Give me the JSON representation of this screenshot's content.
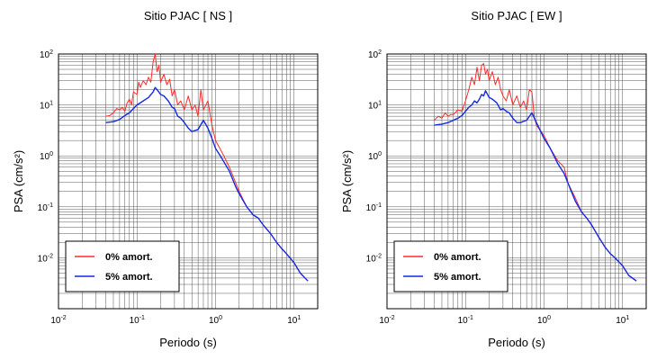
{
  "chart_data": [
    {
      "type": "line",
      "title": "Sitio PJAC [ NS ]",
      "xlabel": "Periodo (s)",
      "ylabel": "PSA (cm/s²)",
      "x_scale": "log",
      "y_scale": "log",
      "xlim": [
        0.01,
        20
      ],
      "ylim": [
        0.001,
        100
      ],
      "x_ticks": [
        {
          "base": "10",
          "exp": "-2"
        },
        {
          "base": "10",
          "exp": "-1"
        },
        {
          "base": "10",
          "exp": "0"
        },
        {
          "base": "10",
          "exp": "1"
        }
      ],
      "y_ticks": [
        {
          "base": "10",
          "exp": "-2"
        },
        {
          "base": "10",
          "exp": "-1"
        },
        {
          "base": "10",
          "exp": "0"
        },
        {
          "base": "10",
          "exp": "1"
        },
        {
          "base": "10",
          "exp": "2"
        }
      ],
      "grid": true,
      "legend_position": "bottom-left",
      "series": [
        {
          "name": "0% amort.",
          "color": "#ff2a2a",
          "points": [
            [
              0.04,
              6
            ],
            [
              0.045,
              6.2
            ],
            [
              0.05,
              7
            ],
            [
              0.055,
              8.5
            ],
            [
              0.06,
              8
            ],
            [
              0.065,
              9
            ],
            [
              0.07,
              7.5
            ],
            [
              0.075,
              11
            ],
            [
              0.08,
              13
            ],
            [
              0.085,
              10
            ],
            [
              0.09,
              18
            ],
            [
              0.1,
              16
            ],
            [
              0.105,
              28
            ],
            [
              0.11,
              22
            ],
            [
              0.12,
              30
            ],
            [
              0.13,
              25
            ],
            [
              0.14,
              35
            ],
            [
              0.15,
              28
            ],
            [
              0.16,
              70
            ],
            [
              0.17,
              100
            ],
            [
              0.18,
              45
            ],
            [
              0.19,
              60
            ],
            [
              0.2,
              28
            ],
            [
              0.22,
              40
            ],
            [
              0.24,
              25
            ],
            [
              0.26,
              32
            ],
            [
              0.28,
              15
            ],
            [
              0.3,
              20
            ],
            [
              0.33,
              10
            ],
            [
              0.36,
              12
            ],
            [
              0.4,
              8
            ],
            [
              0.45,
              15
            ],
            [
              0.5,
              8
            ],
            [
              0.55,
              10
            ],
            [
              0.6,
              6
            ],
            [
              0.65,
              20
            ],
            [
              0.7,
              8
            ],
            [
              0.8,
              12
            ],
            [
              0.9,
              4
            ],
            [
              1.0,
              2
            ],
            [
              1.2,
              1.2
            ],
            [
              1.5,
              0.6
            ],
            [
              1.8,
              0.3
            ],
            [
              2.0,
              0.2
            ],
            [
              2.5,
              0.1
            ],
            [
              3.0,
              0.07
            ],
            [
              3.5,
              0.06
            ],
            [
              4.0,
              0.045
            ],
            [
              5.0,
              0.03
            ],
            [
              6.0,
              0.02
            ],
            [
              7.0,
              0.015
            ],
            [
              8.0,
              0.012
            ],
            [
              10.0,
              0.008
            ],
            [
              12.0,
              0.005
            ],
            [
              15.0,
              0.0035
            ]
          ]
        },
        {
          "name": "5% amort.",
          "color": "#1428e6",
          "points": [
            [
              0.04,
              4.5
            ],
            [
              0.05,
              4.7
            ],
            [
              0.06,
              5.2
            ],
            [
              0.07,
              6.2
            ],
            [
              0.08,
              7
            ],
            [
              0.09,
              8.5
            ],
            [
              0.1,
              10
            ],
            [
              0.12,
              12
            ],
            [
              0.14,
              14
            ],
            [
              0.16,
              18
            ],
            [
              0.17,
              22
            ],
            [
              0.18,
              20
            ],
            [
              0.2,
              16
            ],
            [
              0.22,
              15
            ],
            [
              0.25,
              12
            ],
            [
              0.28,
              9
            ],
            [
              0.3,
              8.5
            ],
            [
              0.33,
              6
            ],
            [
              0.36,
              5.5
            ],
            [
              0.4,
              4.5
            ],
            [
              0.45,
              3.5
            ],
            [
              0.5,
              3
            ],
            [
              0.6,
              3.3
            ],
            [
              0.7,
              5
            ],
            [
              0.8,
              3.5
            ],
            [
              0.9,
              2.2
            ],
            [
              1.0,
              1.4
            ],
            [
              1.2,
              0.9
            ],
            [
              1.5,
              0.5
            ],
            [
              1.8,
              0.25
            ],
            [
              2.0,
              0.18
            ],
            [
              2.5,
              0.1
            ],
            [
              3.0,
              0.07
            ],
            [
              3.5,
              0.06
            ],
            [
              4.0,
              0.045
            ],
            [
              5.0,
              0.03
            ],
            [
              6.0,
              0.02
            ],
            [
              7.0,
              0.015
            ],
            [
              8.0,
              0.012
            ],
            [
              10.0,
              0.008
            ],
            [
              12.0,
              0.005
            ],
            [
              15.0,
              0.0035
            ]
          ]
        }
      ]
    },
    {
      "type": "line",
      "title": "Sitio PJAC [ EW ]",
      "xlabel": "Periodo (s)",
      "ylabel": "PSA (cm/s²)",
      "x_scale": "log",
      "y_scale": "log",
      "xlim": [
        0.01,
        20
      ],
      "ylim": [
        0.001,
        100
      ],
      "x_ticks": [
        {
          "base": "10",
          "exp": "-2"
        },
        {
          "base": "10",
          "exp": "-1"
        },
        {
          "base": "10",
          "exp": "0"
        },
        {
          "base": "10",
          "exp": "1"
        }
      ],
      "y_ticks": [
        {
          "base": "10",
          "exp": "-2"
        },
        {
          "base": "10",
          "exp": "-1"
        },
        {
          "base": "10",
          "exp": "0"
        },
        {
          "base": "10",
          "exp": "1"
        },
        {
          "base": "10",
          "exp": "2"
        }
      ],
      "grid": true,
      "legend_position": "bottom-left",
      "series": [
        {
          "name": "0% amort.",
          "color": "#ff2a2a",
          "points": [
            [
              0.04,
              5
            ],
            [
              0.045,
              6
            ],
            [
              0.05,
              5.5
            ],
            [
              0.055,
              7
            ],
            [
              0.06,
              6
            ],
            [
              0.065,
              6.5
            ],
            [
              0.07,
              6.5
            ],
            [
              0.08,
              8
            ],
            [
              0.09,
              7.5
            ],
            [
              0.1,
              12
            ],
            [
              0.11,
              20
            ],
            [
              0.12,
              35
            ],
            [
              0.13,
              25
            ],
            [
              0.14,
              55
            ],
            [
              0.15,
              30
            ],
            [
              0.16,
              60
            ],
            [
              0.17,
              65
            ],
            [
              0.18,
              40
            ],
            [
              0.19,
              50
            ],
            [
              0.2,
              30
            ],
            [
              0.22,
              45
            ],
            [
              0.24,
              25
            ],
            [
              0.26,
              35
            ],
            [
              0.28,
              20
            ],
            [
              0.3,
              15
            ],
            [
              0.33,
              12
            ],
            [
              0.36,
              20
            ],
            [
              0.4,
              10
            ],
            [
              0.45,
              15
            ],
            [
              0.5,
              9
            ],
            [
              0.55,
              12
            ],
            [
              0.6,
              8
            ],
            [
              0.65,
              20
            ],
            [
              0.7,
              18
            ],
            [
              0.75,
              6
            ],
            [
              0.8,
              4
            ],
            [
              1.0,
              2.5
            ],
            [
              1.2,
              1.4
            ],
            [
              1.5,
              0.8
            ],
            [
              1.8,
              0.6
            ],
            [
              2.0,
              0.3
            ],
            [
              2.5,
              0.15
            ],
            [
              3.0,
              0.08
            ],
            [
              3.5,
              0.06
            ],
            [
              4.0,
              0.045
            ],
            [
              5.0,
              0.025
            ],
            [
              6.0,
              0.016
            ],
            [
              7.0,
              0.012
            ],
            [
              8.0,
              0.01
            ],
            [
              10.0,
              0.007
            ],
            [
              12.0,
              0.0045
            ],
            [
              15.0,
              0.0035
            ]
          ]
        },
        {
          "name": "5% amort.",
          "color": "#1428e6",
          "points": [
            [
              0.04,
              4
            ],
            [
              0.05,
              4.2
            ],
            [
              0.06,
              4.5
            ],
            [
              0.07,
              5
            ],
            [
              0.08,
              5.5
            ],
            [
              0.09,
              6.2
            ],
            [
              0.1,
              7.5
            ],
            [
              0.11,
              9
            ],
            [
              0.12,
              10
            ],
            [
              0.13,
              12
            ],
            [
              0.14,
              11
            ],
            [
              0.15,
              13
            ],
            [
              0.16,
              16
            ],
            [
              0.17,
              15
            ],
            [
              0.18,
              19
            ],
            [
              0.2,
              14
            ],
            [
              0.22,
              13
            ],
            [
              0.25,
              11
            ],
            [
              0.28,
              8
            ],
            [
              0.3,
              8.5
            ],
            [
              0.33,
              7.5
            ],
            [
              0.36,
              7
            ],
            [
              0.4,
              5.5
            ],
            [
              0.45,
              4.5
            ],
            [
              0.5,
              4.5
            ],
            [
              0.6,
              5
            ],
            [
              0.7,
              7
            ],
            [
              0.8,
              4.5
            ],
            [
              1.0,
              2.2
            ],
            [
              1.2,
              1.4
            ],
            [
              1.5,
              0.7
            ],
            [
              1.8,
              0.45
            ],
            [
              2.0,
              0.3
            ],
            [
              2.5,
              0.13
            ],
            [
              3.0,
              0.08
            ],
            [
              3.5,
              0.06
            ],
            [
              4.0,
              0.045
            ],
            [
              5.0,
              0.025
            ],
            [
              6.0,
              0.016
            ],
            [
              7.0,
              0.012
            ],
            [
              8.0,
              0.01
            ],
            [
              10.0,
              0.007
            ],
            [
              12.0,
              0.0045
            ],
            [
              15.0,
              0.0035
            ]
          ]
        }
      ]
    }
  ]
}
